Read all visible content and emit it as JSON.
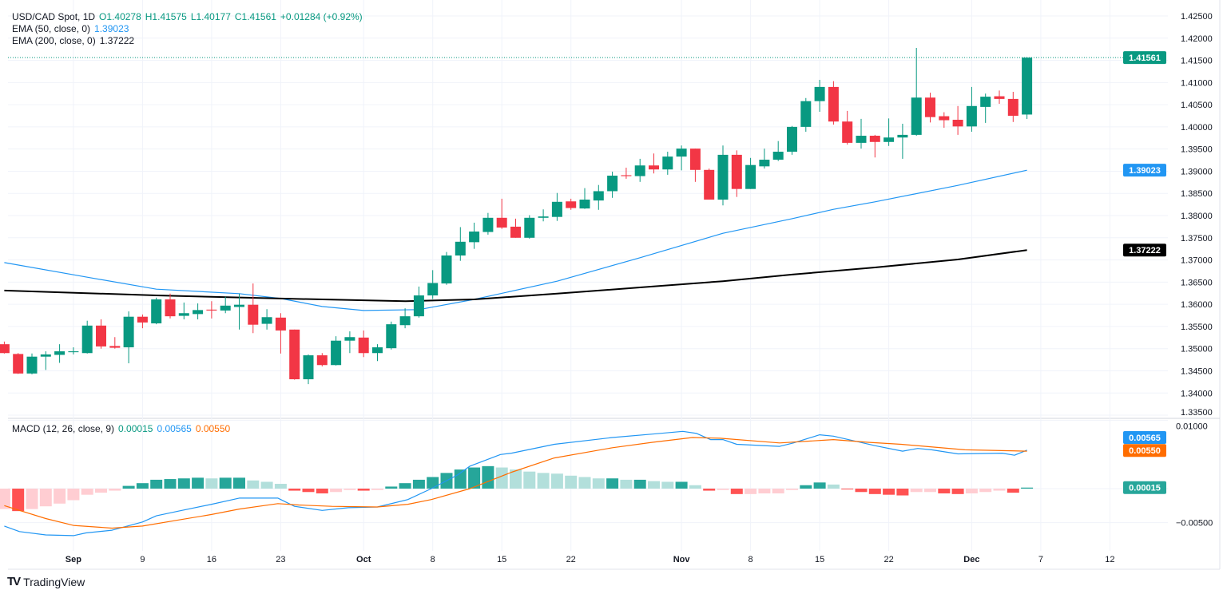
{
  "legend": {
    "symbol": "USD/CAD Spot, 1D",
    "open": "O1.40278",
    "high": "H1.41575",
    "low": "L1.40177",
    "close": "C1.41561",
    "change": "+0.01284 (+0.92%)",
    "ema50_label": "EMA (50, close, 0)",
    "ema50_value": "1.39023",
    "ema200_label": "EMA (200, close, 0)",
    "ema200_value": "1.37222",
    "macd_label": "MACD (12, 26, close, 9)",
    "macd_hist_value": "0.00015",
    "macd_value": "0.00565",
    "signal_value": "0.00550"
  },
  "branding": {
    "name": "TradingView"
  },
  "colors": {
    "up": "#089981",
    "down": "#F23645",
    "ema50": "#2196F3",
    "ema200": "#000000",
    "macd": "#2196F3",
    "signal": "#FF6D00",
    "hist_up_strong": "#26A69A",
    "hist_up_weak": "#B2DFDB",
    "hist_down_strong": "#FF5252",
    "hist_down_weak": "#FFCDD2",
    "grid": "#F0F3FA"
  },
  "chart_data": [
    {
      "type": "candlestick",
      "title": "USD/CAD Spot, 1D",
      "ylim": [
        1.335,
        1.425
      ],
      "y_ticks": [
        "1.42500",
        "1.42000",
        "1.41500",
        "1.41000",
        "1.40500",
        "1.40000",
        "1.39500",
        "1.39000",
        "1.38500",
        "1.38000",
        "1.37500",
        "1.37000",
        "1.36500",
        "1.36000",
        "1.35500",
        "1.35000",
        "1.34500",
        "1.34000",
        "1.33500"
      ],
      "x_ticks": [
        {
          "label": "Sep",
          "index": 5
        },
        {
          "label": "9",
          "index": 10
        },
        {
          "label": "16",
          "index": 15
        },
        {
          "label": "23",
          "index": 20
        },
        {
          "label": "Oct",
          "index": 26
        },
        {
          "label": "8",
          "index": 31
        },
        {
          "label": "15",
          "index": 36
        },
        {
          "label": "22",
          "index": 41
        },
        {
          "label": "Nov",
          "index": 49
        },
        {
          "label": "8",
          "index": 54
        },
        {
          "label": "15",
          "index": 59
        },
        {
          "label": "22",
          "index": 64
        },
        {
          "label": "Dec",
          "index": 70
        },
        {
          "label": "7",
          "index": 75
        },
        {
          "label": "12",
          "index": 80
        }
      ],
      "fields": [
        "open",
        "high",
        "low",
        "close"
      ],
      "candles": [
        [
          1.351,
          1.3516,
          1.3489,
          1.349
        ],
        [
          1.3488,
          1.349,
          1.3443,
          1.3444
        ],
        [
          1.3444,
          1.3489,
          1.3442,
          1.3482
        ],
        [
          1.3482,
          1.3494,
          1.3452,
          1.3487
        ],
        [
          1.3486,
          1.351,
          1.3468,
          1.3494
        ],
        [
          1.3492,
          1.3503,
          1.3487,
          1.3494
        ],
        [
          1.349,
          1.3563,
          1.3489,
          1.3552
        ],
        [
          1.3552,
          1.3566,
          1.35,
          1.3505
        ],
        [
          1.3506,
          1.3526,
          1.35,
          1.3502
        ],
        [
          1.3503,
          1.3584,
          1.3467,
          1.3572
        ],
        [
          1.3572,
          1.3577,
          1.3546,
          1.3559
        ],
        [
          1.3557,
          1.3615,
          1.3555,
          1.3611
        ],
        [
          1.3611,
          1.3624,
          1.3568,
          1.3573
        ],
        [
          1.3574,
          1.3604,
          1.3566,
          1.358
        ],
        [
          1.3578,
          1.3602,
          1.3566,
          1.3587
        ],
        [
          1.3588,
          1.3607,
          1.3568,
          1.3586
        ],
        [
          1.3586,
          1.3617,
          1.358,
          1.3597
        ],
        [
          1.3594,
          1.3624,
          1.3543,
          1.3599
        ],
        [
          1.3599,
          1.3647,
          1.3535,
          1.3554
        ],
        [
          1.3556,
          1.3589,
          1.3543,
          1.3571
        ],
        [
          1.357,
          1.358,
          1.3489,
          1.3541
        ],
        [
          1.3543,
          1.3543,
          1.343,
          1.3431
        ],
        [
          1.3431,
          1.3487,
          1.342,
          1.3485
        ],
        [
          1.3485,
          1.349,
          1.346,
          1.3463
        ],
        [
          1.3463,
          1.3528,
          1.3462,
          1.3518
        ],
        [
          1.3518,
          1.3539,
          1.349,
          1.3526
        ],
        [
          1.3525,
          1.3541,
          1.3481,
          1.349
        ],
        [
          1.349,
          1.351,
          1.3472,
          1.3503
        ],
        [
          1.3501,
          1.3561,
          1.3498,
          1.3555
        ],
        [
          1.3553,
          1.3591,
          1.3546,
          1.3573
        ],
        [
          1.3573,
          1.364,
          1.357,
          1.362
        ],
        [
          1.362,
          1.3677,
          1.3612,
          1.3648
        ],
        [
          1.3647,
          1.3718,
          1.3644,
          1.371
        ],
        [
          1.371,
          1.3774,
          1.3698,
          1.3741
        ],
        [
          1.374,
          1.3784,
          1.3725,
          1.3764
        ],
        [
          1.3763,
          1.3806,
          1.3757,
          1.3795
        ],
        [
          1.3795,
          1.3838,
          1.377,
          1.3773
        ],
        [
          1.3775,
          1.3793,
          1.375,
          1.375
        ],
        [
          1.375,
          1.3801,
          1.3748,
          1.3795
        ],
        [
          1.3795,
          1.3814,
          1.3787,
          1.3798
        ],
        [
          1.3797,
          1.3851,
          1.3788,
          1.3831
        ],
        [
          1.3832,
          1.3838,
          1.3813,
          1.3817
        ],
        [
          1.3816,
          1.3862,
          1.3815,
          1.3836
        ],
        [
          1.3834,
          1.3869,
          1.3813,
          1.3855
        ],
        [
          1.3855,
          1.3899,
          1.384,
          1.389
        ],
        [
          1.3891,
          1.3908,
          1.3883,
          1.3889
        ],
        [
          1.3889,
          1.3928,
          1.3876,
          1.3913
        ],
        [
          1.3913,
          1.394,
          1.3895,
          1.3904
        ],
        [
          1.3904,
          1.3944,
          1.3892,
          1.3933
        ],
        [
          1.3933,
          1.3958,
          1.3902,
          1.3951
        ],
        [
          1.3951,
          1.3951,
          1.3876,
          1.3903
        ],
        [
          1.3903,
          1.3906,
          1.3836,
          1.3836
        ],
        [
          1.3836,
          1.3958,
          1.3823,
          1.3937
        ],
        [
          1.3937,
          1.3947,
          1.3842,
          1.386
        ],
        [
          1.386,
          1.393,
          1.386,
          1.3914
        ],
        [
          1.3911,
          1.3951,
          1.3906,
          1.3926
        ],
        [
          1.3926,
          1.3968,
          1.3923,
          1.3944
        ],
        [
          1.3944,
          1.4002,
          1.3937,
          1.4
        ],
        [
          1.4,
          1.4065,
          1.3989,
          1.4058
        ],
        [
          1.4058,
          1.4106,
          1.4034,
          1.409
        ],
        [
          1.409,
          1.4103,
          1.4005,
          1.4012
        ],
        [
          1.4012,
          1.4036,
          1.396,
          1.3964
        ],
        [
          1.3964,
          1.4018,
          1.3951,
          1.398
        ],
        [
          1.398,
          1.3982,
          1.3931,
          1.3966
        ],
        [
          1.3966,
          1.4019,
          1.3957,
          1.3976
        ],
        [
          1.3976,
          1.4007,
          1.3928,
          1.3982
        ],
        [
          1.3982,
          1.4178,
          1.398,
          1.4066
        ],
        [
          1.4066,
          1.4077,
          1.401,
          1.4022
        ],
        [
          1.4024,
          1.4033,
          1.3998,
          1.4015
        ],
        [
          1.4016,
          1.4047,
          1.3982,
          1.4001
        ],
        [
          1.4001,
          1.409,
          1.3989,
          1.4047
        ],
        [
          1.4045,
          1.4075,
          1.4009,
          1.4068
        ],
        [
          1.4069,
          1.4082,
          1.4052,
          1.4063
        ],
        [
          1.4063,
          1.4079,
          1.4011,
          1.4025
        ],
        [
          1.40278,
          1.41575,
          1.40177,
          1.41561
        ]
      ],
      "last_price": {
        "label": "1.41561",
        "value": 1.41561
      },
      "ema50": {
        "badge": "1.39023",
        "points": [
          [
            0,
            1.3694
          ],
          [
            6,
            1.3661
          ],
          [
            11,
            1.3634
          ],
          [
            17,
            1.3624
          ],
          [
            20,
            1.3613
          ],
          [
            23,
            1.3595
          ],
          [
            26,
            1.3586
          ],
          [
            30,
            1.3588
          ],
          [
            34,
            1.3611
          ],
          [
            40,
            1.3652
          ],
          [
            46,
            1.3705
          ],
          [
            52,
            1.376
          ],
          [
            57,
            1.3793
          ],
          [
            60,
            1.3814
          ],
          [
            63,
            1.3831
          ],
          [
            69,
            1.3868
          ],
          [
            74,
            1.39023
          ]
        ]
      },
      "ema200": {
        "badge": "1.37222",
        "points": [
          [
            0,
            1.3631
          ],
          [
            11,
            1.362
          ],
          [
            20,
            1.3613
          ],
          [
            29,
            1.3607
          ],
          [
            34,
            1.3611
          ],
          [
            40,
            1.3624
          ],
          [
            46,
            1.3638
          ],
          [
            52,
            1.3652
          ],
          [
            57,
            1.3667
          ],
          [
            63,
            1.3683
          ],
          [
            69,
            1.3701
          ],
          [
            74,
            1.37222
          ]
        ]
      }
    },
    {
      "type": "macd",
      "title": "MACD (12, 26, close, 9)",
      "ylim": [
        -0.0085,
        0.01
      ],
      "y_ticks": [
        {
          "label": "0.01000",
          "value": 0.01
        },
        {
          "label": "−0.00500",
          "value": -0.005
        }
      ],
      "badges": {
        "macd": "0.00565",
        "signal": "0.00550",
        "histogram": "0.00015"
      },
      "histogram": [
        -0.003,
        -0.0033,
        -0.003,
        -0.0026,
        -0.0022,
        -0.0017,
        -0.0009,
        -0.0006,
        -0.0003,
        0.0004,
        0.0008,
        0.0013,
        0.0014,
        0.0015,
        0.0016,
        0.0015,
        0.0016,
        0.0016,
        0.0012,
        0.001,
        0.0007,
        -0.0003,
        -0.0005,
        -0.0007,
        -0.0005,
        -0.0002,
        -0.0003,
        -0.0002,
        0.0003,
        0.0008,
        0.0013,
        0.0017,
        0.0023,
        0.0028,
        0.0031,
        0.0033,
        0.0031,
        0.0028,
        0.0025,
        0.0023,
        0.0022,
        0.0019,
        0.0017,
        0.0015,
        0.0015,
        0.0013,
        0.0013,
        0.0011,
        0.001,
        0.001,
        0.0005,
        -0.0003,
        -0.0002,
        -0.0008,
        -0.0008,
        -0.0007,
        -0.0007,
        -0.0002,
        0.0005,
        0.0009,
        0.0006,
        -0.0001,
        -0.0005,
        -0.0008,
        -0.0009,
        -0.001,
        -0.0005,
        -0.0005,
        -0.0007,
        -0.0008,
        -0.0007,
        -0.0005,
        -0.0003,
        -0.0006,
        0.00015
      ],
      "macd_line": [
        [
          0,
          -0.0055
        ],
        [
          1.1,
          -0.0063
        ],
        [
          3,
          -0.0068
        ],
        [
          5,
          -0.0069
        ],
        [
          5.9,
          -0.0065
        ],
        [
          7.8,
          -0.0061
        ],
        [
          10,
          -0.0049
        ],
        [
          11,
          -0.004
        ],
        [
          12.6,
          -0.0033
        ],
        [
          15,
          -0.0023
        ],
        [
          17,
          -0.0014
        ],
        [
          19.8,
          -0.0014
        ],
        [
          21,
          -0.0026
        ],
        [
          23,
          -0.0032
        ],
        [
          24.9,
          -0.0028
        ],
        [
          27,
          -0.0027
        ],
        [
          29.2,
          -0.0016
        ],
        [
          30.9,
          0.0
        ],
        [
          32.8,
          0.002
        ],
        [
          33.7,
          0.0033
        ],
        [
          35.9,
          0.005
        ],
        [
          36.7,
          0.0052
        ],
        [
          39.8,
          0.0065
        ],
        [
          44,
          0.0075
        ],
        [
          46.9,
          0.008
        ],
        [
          49.1,
          0.0084
        ],
        [
          50.1,
          0.0081
        ],
        [
          51.1,
          0.0072
        ],
        [
          52,
          0.0072
        ],
        [
          53,
          0.0065
        ],
        [
          56.1,
          0.0062
        ],
        [
          57.1,
          0.0067
        ],
        [
          59,
          0.0079
        ],
        [
          60,
          0.0077
        ],
        [
          63,
          0.0063
        ],
        [
          65,
          0.0055
        ],
        [
          66.1,
          0.0059
        ],
        [
          67.1,
          0.0057
        ],
        [
          69,
          0.0051
        ],
        [
          72.2,
          0.0052
        ],
        [
          73.1,
          0.0049
        ],
        [
          74,
          0.00565
        ]
      ],
      "signal_line": [
        [
          0,
          -0.0025
        ],
        [
          1.1,
          -0.0032
        ],
        [
          3,
          -0.0044
        ],
        [
          5,
          -0.0054
        ],
        [
          7.8,
          -0.0058
        ],
        [
          10,
          -0.0055
        ],
        [
          12.6,
          -0.0046
        ],
        [
          15,
          -0.0038
        ],
        [
          17,
          -0.003
        ],
        [
          19.8,
          -0.0022
        ],
        [
          21.3,
          -0.0024
        ],
        [
          23.7,
          -0.0026
        ],
        [
          27,
          -0.0027
        ],
        [
          29.2,
          -0.0023
        ],
        [
          30.9,
          -0.0016
        ],
        [
          33.7,
          0.0
        ],
        [
          36.7,
          0.0024
        ],
        [
          39.8,
          0.0045
        ],
        [
          44,
          0.006
        ],
        [
          46.9,
          0.0068
        ],
        [
          49.8,
          0.0075
        ],
        [
          51.8,
          0.0074
        ],
        [
          56.1,
          0.0067
        ],
        [
          60,
          0.0072
        ],
        [
          62.5,
          0.0068
        ],
        [
          64.9,
          0.0065
        ],
        [
          69.5,
          0.0057
        ],
        [
          74,
          0.0055
        ]
      ]
    }
  ]
}
